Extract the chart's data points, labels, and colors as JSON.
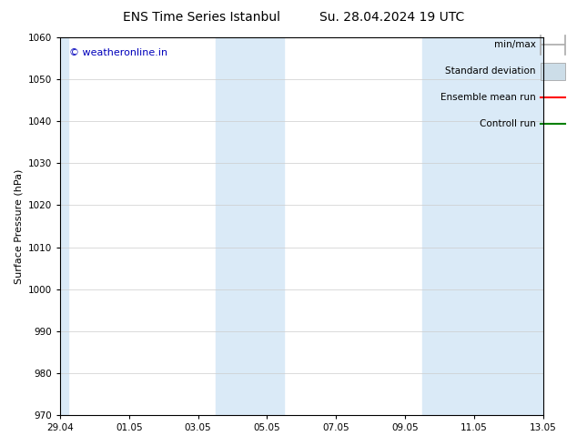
{
  "title": "ENS Time Series Istanbul",
  "title2": "Su. 28.04.2024 19 UTC",
  "ylabel": "Surface Pressure (hPa)",
  "ylim": [
    970,
    1060
  ],
  "yticks": [
    970,
    980,
    990,
    1000,
    1010,
    1020,
    1030,
    1040,
    1050,
    1060
  ],
  "xtick_labels": [
    "29.04",
    "01.05",
    "03.05",
    "05.05",
    "07.05",
    "09.05",
    "11.05",
    "13.05"
  ],
  "xtick_positions": [
    0,
    2,
    4,
    6,
    8,
    10,
    12,
    14
  ],
  "xlim": [
    0,
    14
  ],
  "shaded_regions": [
    {
      "x_start": 0.0,
      "x_end": 0.25
    },
    {
      "x_start": 4.5,
      "x_end": 6.5
    },
    {
      "x_start": 10.5,
      "x_end": 14.0
    }
  ],
  "shaded_color": "#daeaf7",
  "watermark_text": "© weatheronline.in",
  "watermark_color": "#0000bb",
  "legend_items": [
    {
      "label": "min/max",
      "color": "#aaaaaa",
      "style": "line_with_caps"
    },
    {
      "label": "Standard deviation",
      "color": "#ccdde8",
      "style": "filled_bar"
    },
    {
      "label": "Ensemble mean run",
      "color": "#ff0000",
      "style": "line"
    },
    {
      "label": "Controll run",
      "color": "#008000",
      "style": "line"
    }
  ],
  "bg_color": "#ffffff",
  "grid_color": "#cccccc",
  "font_size_title": 10,
  "font_size_axis": 8,
  "font_size_tick": 7.5,
  "font_size_legend": 7.5,
  "font_size_watermark": 8
}
